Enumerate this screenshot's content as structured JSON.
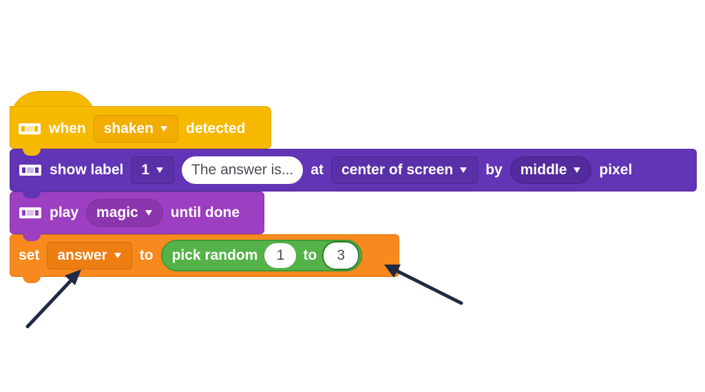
{
  "blocks": {
    "hat": {
      "word1": "when",
      "dropdown": "shaken",
      "word2": "detected"
    },
    "show_label": {
      "word1": "show label",
      "label_dropdown": "1",
      "text_value": "The answer is...",
      "word2": "at",
      "position_dropdown": "center of screen",
      "word3": "by",
      "size_dropdown": "middle",
      "word4": "pixel"
    },
    "play": {
      "word1": "play",
      "sound_dropdown": "magic",
      "word2": "until done"
    },
    "set": {
      "word1": "set",
      "variable_dropdown": "answer",
      "word2": "to",
      "reporter": {
        "label": "pick random",
        "from": "1",
        "word": "to",
        "to": "3"
      }
    }
  },
  "colors": {
    "event": "#f7b800",
    "display": "#6135b5",
    "sound": "#9c3fc0",
    "variable": "#f7891e",
    "operator": "#55b249",
    "annotation_arrow": "#1f2a44"
  },
  "icons": {
    "extension": "device-icon",
    "dropdown": "triangle-down-icon",
    "pointer": "annotation-arrow-icon"
  }
}
